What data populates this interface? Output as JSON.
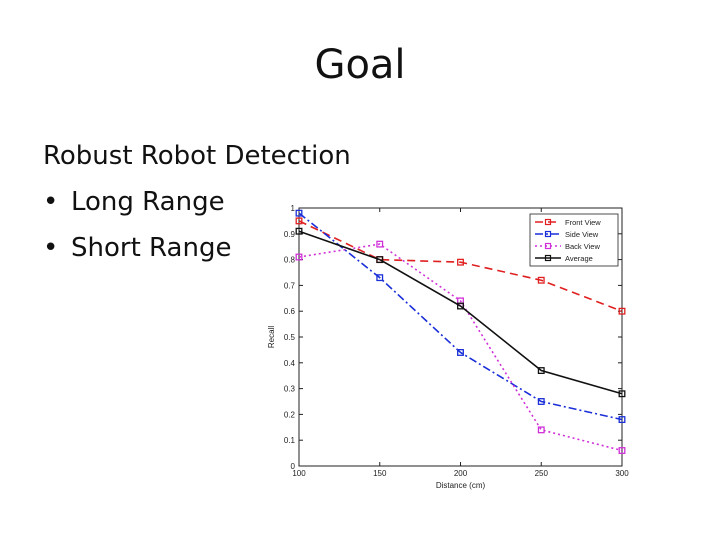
{
  "slide": {
    "title": "Goal",
    "heading": "Robust Robot Detection",
    "bullets": [
      "Long Range",
      "Short Range"
    ],
    "bullet_glyph": "•"
  },
  "chart_data": {
    "type": "line",
    "xlabel": "Distance (cm)",
    "ylabel": "Recall",
    "x": [
      100,
      150,
      200,
      250,
      300
    ],
    "xlim": [
      100,
      300
    ],
    "ylim": [
      0,
      1
    ],
    "xticks": [
      "100",
      "150",
      "200",
      "250",
      "300"
    ],
    "yticks": [
      "0",
      "0.1",
      "0.2",
      "0.3",
      "0.4",
      "0.5",
      "0.6",
      "0.7",
      "0.8",
      "0.9",
      "1"
    ],
    "legend_position": "top-right",
    "series": [
      {
        "name": "Front View",
        "values": [
          0.95,
          0.8,
          0.79,
          0.72,
          0.6
        ],
        "color": "#e02020",
        "dash": "8,5"
      },
      {
        "name": "Side View",
        "values": [
          0.98,
          0.73,
          0.44,
          0.25,
          0.18
        ],
        "color": "#1a2fd8",
        "dash": "8,3,2,3"
      },
      {
        "name": "Back View",
        "values": [
          0.81,
          0.86,
          0.64,
          0.14,
          0.06
        ],
        "color": "#d030d8",
        "dash": "2,3"
      },
      {
        "name": "Average",
        "values": [
          0.91,
          0.8,
          0.62,
          0.37,
          0.28
        ],
        "color": "#111111",
        "dash": ""
      }
    ]
  }
}
